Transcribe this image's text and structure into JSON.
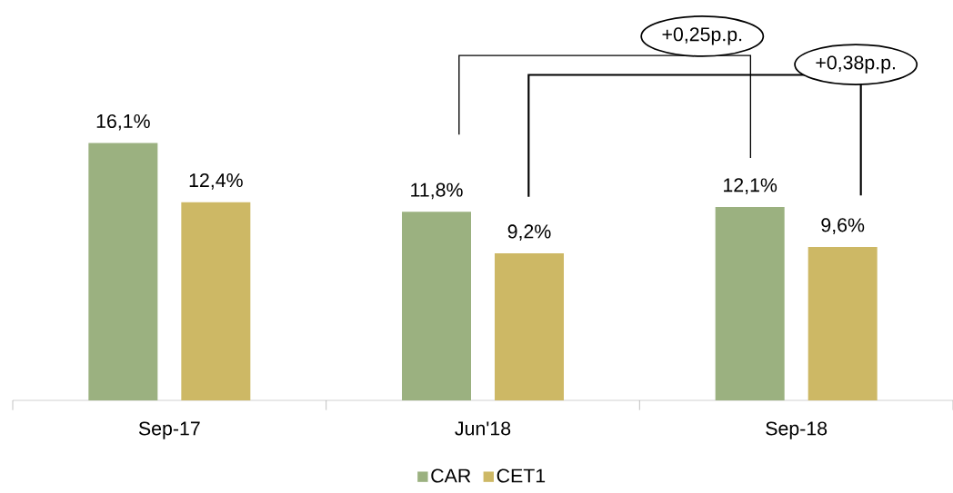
{
  "chart_data": {
    "type": "bar",
    "categories": [
      "Sep-17",
      "Jun'18",
      "Sep-18"
    ],
    "series": [
      {
        "name": "CAR",
        "color": "#9bb180",
        "values": [
          16.1,
          11.8,
          12.1
        ],
        "value_labels": [
          "16,1%",
          "11,8%",
          "12,1%"
        ]
      },
      {
        "name": "CET1",
        "color": "#cdb865",
        "values": [
          12.4,
          9.2,
          9.6
        ],
        "value_labels": [
          "12,4%",
          "9,2%",
          "9,6%"
        ]
      }
    ],
    "annotations": [
      "+0,25p.p.",
      "+0,38p.p."
    ],
    "legend": "bottom"
  }
}
